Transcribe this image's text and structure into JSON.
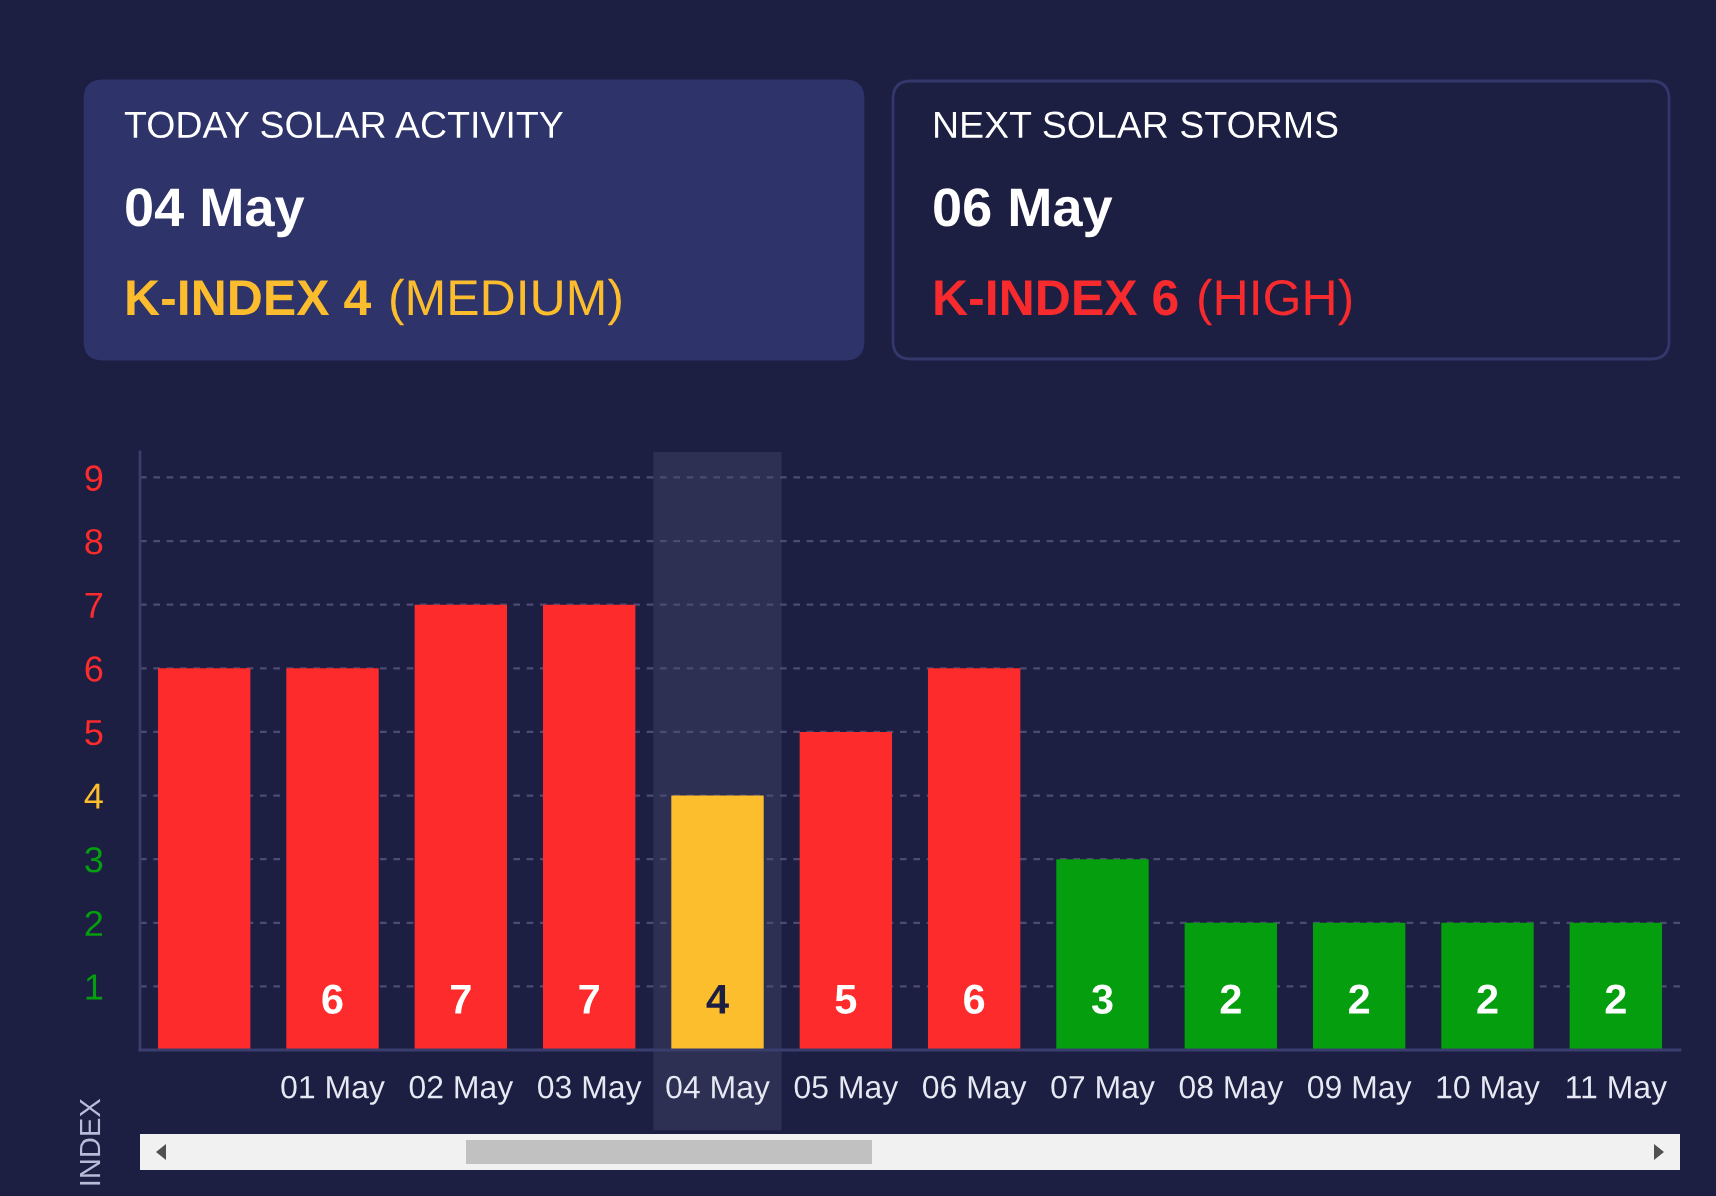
{
  "chart_data": [
    {
      "type": "other",
      "title": "TODAY SOLAR ACTIVITY",
      "subtitle": "04 May",
      "annotations": [
        "K-INDEX 4",
        "(MEDIUM)"
      ],
      "color": "#fbbc2d"
    },
    {
      "type": "other",
      "title": "NEXT SOLAR STORMS",
      "subtitle": "06 May",
      "annotations": [
        "K-INDEX 6",
        "(HIGH)"
      ],
      "color": "#f72a2e"
    },
    {
      "type": "bar",
      "ylabel": "INDEX",
      "categories": [
        null,
        "01 May",
        "02 May",
        "03 May",
        "04 May",
        "05 May",
        "06 May",
        "07 May",
        "08 May",
        "09 May",
        "10 May",
        "11 May"
      ],
      "values": [
        6,
        6,
        7,
        7,
        4,
        5,
        6,
        3,
        2,
        2,
        2,
        2
      ],
      "colors": [
        "#fd2b2b",
        "#fd2b2b",
        "#fd2b2b",
        "#fd2b2b",
        "#fcbe2d",
        "#fd2b2b",
        "#fd2b2b",
        "#049e0e",
        "#049e0e",
        "#049e0e",
        "#049e0e",
        "#049e0e"
      ],
      "value_labels": [
        null,
        "6",
        "7",
        "7",
        "4",
        "5",
        "6",
        "3",
        "2",
        "2",
        "2",
        "2"
      ],
      "ylim": [
        0,
        9.4
      ],
      "yticks": [
        1,
        2,
        3,
        4,
        5,
        6,
        7,
        8,
        9
      ],
      "grid": "y",
      "bands": [
        {
          "axis": "x",
          "from": "04 May",
          "to": "04 May",
          "color": "#2d2f53"
        }
      ]
    }
  ]
}
